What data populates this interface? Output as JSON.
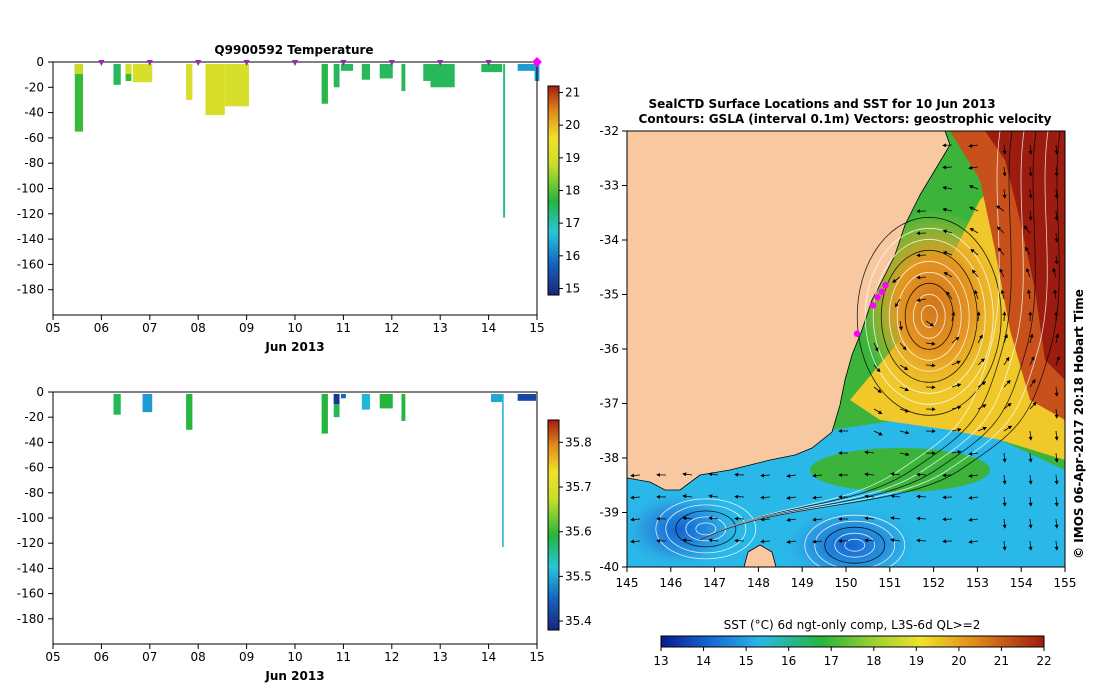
{
  "chart_data": [
    {
      "type": "bar",
      "title": "Q9900592  Temperature",
      "xlabel": "Jun 2013",
      "ylabel": "",
      "xlim": [
        5,
        15
      ],
      "ylim": [
        -200,
        0
      ],
      "x_ticks": [
        "05",
        "06",
        "07",
        "08",
        "09",
        "10",
        "11",
        "12",
        "13",
        "14",
        "15"
      ],
      "y_ticks": [
        "0",
        "-20",
        "-40",
        "-60",
        "-80",
        "-100",
        "-120",
        "-140",
        "-160",
        "-180"
      ],
      "profile_markers": [
        6.0,
        7.0,
        8.0,
        9.0,
        10.0,
        11.0,
        12.0,
        13.0,
        14.0,
        15.0
      ],
      "colorbar": {
        "min": 14.8,
        "max": 21.2,
        "ticks": [
          "21",
          "20",
          "19",
          "18",
          "17",
          "16",
          "15"
        ]
      },
      "profiles": [
        {
          "x": [
            5.45,
            5.62
          ],
          "depth": 55,
          "value": 17.8,
          "surface_value": 18.8
        },
        {
          "x": [
            6.25,
            6.4
          ],
          "depth": 18,
          "value": 17.5
        },
        {
          "x": [
            6.5,
            6.62
          ],
          "depth": 15,
          "value": 17.8,
          "surface_value": 19.0
        },
        {
          "x": [
            6.65,
            7.05
          ],
          "depth": 16,
          "value": 19.1
        },
        {
          "x": [
            7.75,
            7.88
          ],
          "depth": 30,
          "value": 19.1
        },
        {
          "x": [
            8.15,
            8.55
          ],
          "depth": 42,
          "value": 19.1
        },
        {
          "x": [
            8.55,
            9.05
          ],
          "depth": 35,
          "value": 19.1
        },
        {
          "x": [
            10.55,
            10.68
          ],
          "depth": 33,
          "value": 17.6
        },
        {
          "x": [
            10.8,
            10.92
          ],
          "depth": 20,
          "value": 17.5
        },
        {
          "x": [
            10.95,
            11.2
          ],
          "depth": 7,
          "value": 17.5
        },
        {
          "x": [
            11.38,
            11.55
          ],
          "depth": 14,
          "value": 17.5
        },
        {
          "x": [
            11.75,
            12.02
          ],
          "depth": 13,
          "value": 17.5
        },
        {
          "x": [
            12.2,
            12.28
          ],
          "depth": 23,
          "value": 17.5
        },
        {
          "x": [
            12.65,
            12.9
          ],
          "depth": 15,
          "value": 17.5
        },
        {
          "x": [
            12.8,
            13.3
          ],
          "depth": 20,
          "value": 17.5
        },
        {
          "x": [
            13.85,
            14.28
          ],
          "depth": 8,
          "value": 17.5
        },
        {
          "x": [
            14.3,
            14.34
          ],
          "depth": 123,
          "value": 17.3
        },
        {
          "x": [
            14.6,
            14.98
          ],
          "depth": 7,
          "value": 16.3
        },
        {
          "x": [
            14.95,
            15.05
          ],
          "depth": 15,
          "value": 16.3
        }
      ]
    },
    {
      "type": "bar",
      "title": "",
      "xlabel": "Jun 2013",
      "ylabel": "",
      "xlim": [
        5,
        15
      ],
      "ylim": [
        -200,
        0
      ],
      "x_ticks": [
        "05",
        "06",
        "07",
        "08",
        "09",
        "10",
        "11",
        "12",
        "13",
        "14",
        "15"
      ],
      "y_ticks": [
        "0",
        "-20",
        "-40",
        "-60",
        "-80",
        "-100",
        "-120",
        "-140",
        "-160",
        "-180"
      ],
      "colorbar": {
        "min": 35.38,
        "max": 35.85,
        "ticks": [
          "35.8",
          "35.7",
          "35.6",
          "35.5",
          "35.4"
        ]
      },
      "profiles": [
        {
          "x": [
            6.25,
            6.4
          ],
          "depth": 18,
          "value": 35.58
        },
        {
          "x": [
            6.85,
            7.05
          ],
          "depth": 16,
          "value": 35.49
        },
        {
          "x": [
            7.75,
            7.88
          ],
          "depth": 30,
          "value": 35.59
        },
        {
          "x": [
            10.55,
            10.68
          ],
          "depth": 33,
          "value": 35.59
        },
        {
          "x": [
            10.8,
            10.92
          ],
          "depth": 20,
          "value": 35.58,
          "surface_value": 35.4
        },
        {
          "x": [
            10.95,
            11.05
          ],
          "depth": 5,
          "value": 35.45
        },
        {
          "x": [
            11.38,
            11.55
          ],
          "depth": 14,
          "value": 35.51
        },
        {
          "x": [
            11.75,
            12.02
          ],
          "depth": 13,
          "value": 35.59
        },
        {
          "x": [
            12.2,
            12.28
          ],
          "depth": 23,
          "value": 35.59
        },
        {
          "x": [
            14.05,
            14.28
          ],
          "depth": 8,
          "value": 35.5
        },
        {
          "x": [
            14.28,
            14.31
          ],
          "depth": 123,
          "value": 35.5
        },
        {
          "x": [
            14.6,
            14.98
          ],
          "depth": 7,
          "value": 35.42
        }
      ]
    },
    {
      "type": "heatmap",
      "title": "SealCTD Surface Locations and SST for 10 Jun 2013",
      "subtitle": "Contours: GSLA (interval 0.1m) Vectors: geostrophic velocity",
      "xlabel": "",
      "ylabel": "",
      "xlim": [
        145,
        155
      ],
      "ylim": [
        -40,
        -32
      ],
      "x_ticks": [
        "145",
        "146",
        "147",
        "148",
        "149",
        "150",
        "151",
        "152",
        "153",
        "154",
        "155"
      ],
      "y_ticks": [
        "-32",
        "-33",
        "-34",
        "-35",
        "-36",
        "-37",
        "-38",
        "-39",
        "-40"
      ],
      "colorbar": {
        "label": "SST (°C) 6d ngt-only comp, L3S-6d QL>=2",
        "min": 13,
        "max": 22,
        "ticks": [
          "13",
          "14",
          "15",
          "16",
          "17",
          "18",
          "19",
          "20",
          "21",
          "22"
        ]
      },
      "credit": "© IMOS 06-Apr-2017 20:18 Hobart Time",
      "eddies": [
        {
          "type": "warm",
          "lon": 151.9,
          "lat": -35.4
        },
        {
          "type": "cold",
          "lon": 150.2,
          "lat": -39.6
        },
        {
          "type": "cold",
          "lon": 146.8,
          "lat": -39.3
        }
      ],
      "seal_locations": [
        {
          "lon": 150.9,
          "lat": -34.83
        },
        {
          "lon": 150.82,
          "lat": -34.95
        },
        {
          "lon": 150.72,
          "lat": -35.05
        },
        {
          "lon": 150.62,
          "lat": -35.2
        },
        {
          "lon": 150.25,
          "lat": -35.72
        }
      ]
    }
  ]
}
